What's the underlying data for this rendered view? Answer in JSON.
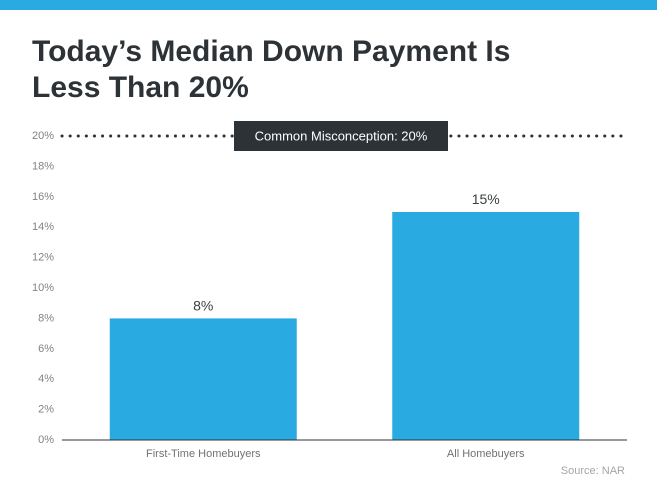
{
  "header": {
    "title_line1": "Today’s Median Down Payment Is",
    "title_line2": "Less Than 20%"
  },
  "colors": {
    "accent": "#29abe2",
    "bar": "#29abe2",
    "title": "#2d3236",
    "annotation_bg": "#2d3236",
    "dotted_line": "#2d3236"
  },
  "chart_data": {
    "type": "bar",
    "categories": [
      "First-Time Homebuyers",
      "All Homebuyers"
    ],
    "values": [
      8,
      15
    ],
    "value_labels": [
      "8%",
      "15%"
    ],
    "title": "Today’s Median Down Payment Is Less Than 20%",
    "xlabel": "",
    "ylabel": "",
    "ylim": [
      0,
      20
    ],
    "yticks": [
      0,
      2,
      4,
      6,
      8,
      10,
      12,
      14,
      16,
      18,
      20
    ],
    "ytick_labels": [
      "0%",
      "2%",
      "4%",
      "6%",
      "8%",
      "10%",
      "12%",
      "14%",
      "16%",
      "18%",
      "20%"
    ],
    "grid": false,
    "reference_line": {
      "value": 20,
      "style": "dotted",
      "label": "Common Misconception: 20%"
    }
  },
  "footer": {
    "source": "Source: NAR"
  }
}
